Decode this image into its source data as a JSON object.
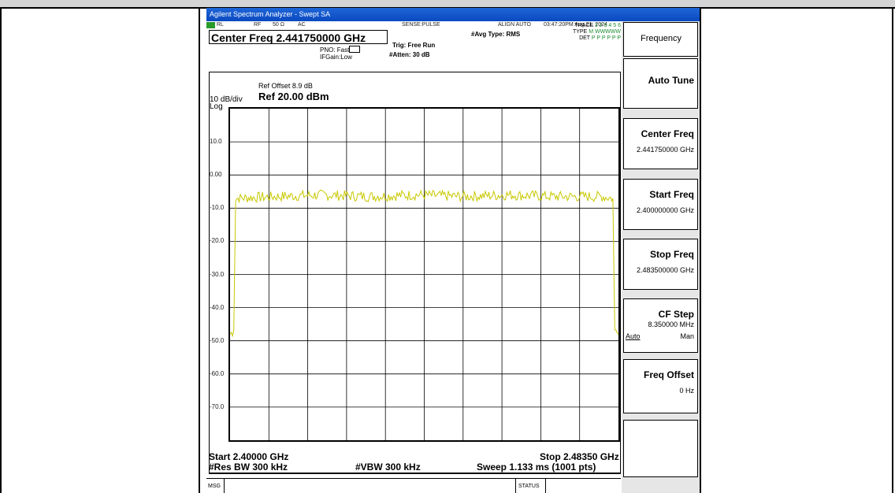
{
  "window": {
    "title": "Agilent Spectrum Analyzer - Swept SA"
  },
  "status_row": {
    "rl": "RL",
    "rf": "RF",
    "imp": "50 Ω",
    "coupling": "AC",
    "sense": "SENSE:PULSE",
    "align": "ALIGN AUTO",
    "datetime": "03:47:20PM Aug 21, 2024"
  },
  "header": {
    "center_freq": "Center Freq 2.441750000 GHz",
    "pno": "PNO: Fast",
    "ifgain": "IFGain:Low",
    "trig": "Trig: Free Run",
    "atten": "#Atten: 30 dB",
    "avg_type": "#Avg Type: RMS",
    "trace_label": "TRACE",
    "trace_value": "1 2 3 4 5 6",
    "type_label": "TYPE",
    "type_value": "M WWWWW",
    "det_label": "DET",
    "det_value": "P P P P P P"
  },
  "display": {
    "ref_offset": "Ref Offset 8.9 dB",
    "scale": "10 dB/div",
    "ref_level": "Ref 20.00 dBm",
    "scale_type": "Log",
    "y_tick_labels": [
      "10.0",
      "0.00",
      "-10.0",
      "-20.0",
      "-30.0",
      "-40.0",
      "-50.0",
      "-60.0",
      "-70.0"
    ]
  },
  "chart_data": {
    "type": "line",
    "xlabel": "",
    "ylabel": "",
    "x_unit": "GHz",
    "y_unit": "dBm",
    "xlim": [
      2.4,
      2.4835
    ],
    "ylim": [
      -80,
      20
    ],
    "grid": true,
    "series": [
      {
        "x": [
          2.4,
          2.4008,
          2.4012,
          2.41,
          2.42,
          2.43,
          2.44,
          2.45,
          2.46,
          2.47,
          2.48,
          2.4823,
          2.4827,
          2.4835
        ],
        "values": [
          -48,
          -47,
          -7,
          -6.5,
          -6,
          -6.5,
          -6,
          -6.5,
          -6,
          -6.5,
          -6.5,
          -7,
          -47,
          -48
        ]
      }
    ]
  },
  "footer": {
    "start": "Start 2.40000 GHz",
    "stop": "Stop 2.48350 GHz",
    "res_bw": "#Res BW 300 kHz",
    "vbw": "#VBW 300 kHz",
    "sweep": "Sweep  1.133 ms (1001 pts)",
    "msg": "MSG",
    "status": "STATUS"
  },
  "softkeys": {
    "menu_title": "Frequency",
    "auto_tune": "Auto Tune",
    "center_freq_label": "Center Freq",
    "center_freq_value": "2.441750000 GHz",
    "start_freq_label": "Start Freq",
    "start_freq_value": "2.400000000 GHz",
    "stop_freq_label": "Stop Freq",
    "stop_freq_value": "2.483500000 GHz",
    "cf_step_label": "CF Step",
    "cf_step_value": "8.350000 MHz",
    "cf_step_auto": "Auto",
    "cf_step_man": "Man",
    "freq_offset_label": "Freq Offset",
    "freq_offset_value": "0 Hz"
  },
  "colors": {
    "trace": "#c8c800",
    "titlebar": "#0a49c0",
    "grid": "#000000"
  }
}
